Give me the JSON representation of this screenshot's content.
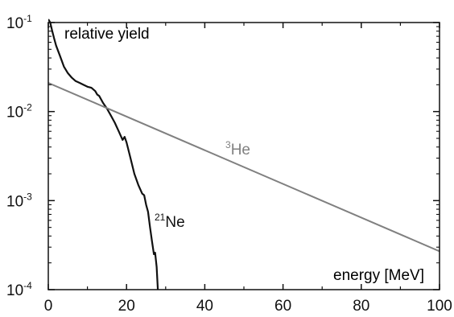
{
  "chart_data": {
    "type": "line",
    "title": "",
    "xlabel": "energy [MeV]",
    "ylabel": "relative yield",
    "xlim": [
      0,
      100
    ],
    "ylim": [
      0.0001,
      0.1
    ],
    "yscale": "log",
    "grid": false,
    "x_ticks": [
      {
        "value": 0,
        "label": "0"
      },
      {
        "value": 20,
        "label": "20"
      },
      {
        "value": 40,
        "label": "40"
      },
      {
        "value": 60,
        "label": "60"
      },
      {
        "value": 80,
        "label": "80"
      },
      {
        "value": 100,
        "label": "100"
      }
    ],
    "y_ticks": [
      {
        "value": 0.1,
        "base": "10",
        "exp": "-1"
      },
      {
        "value": 0.01,
        "base": "10",
        "exp": "-2"
      },
      {
        "value": 0.001,
        "base": "10",
        "exp": "-3"
      },
      {
        "value": 0.0001,
        "base": "10",
        "exp": "-4"
      }
    ],
    "series": [
      {
        "name": "21Ne",
        "label_sup": "21",
        "label_main": "Ne",
        "color": "#111111",
        "x": [
          0,
          0.5,
          1,
          1.5,
          2,
          3,
          4,
          5,
          6,
          7,
          8,
          9,
          10,
          11,
          12,
          12.5,
          13,
          14,
          15,
          16,
          17,
          18,
          19,
          19.5,
          20,
          21,
          22,
          23,
          24,
          24.5,
          25,
          25.5,
          26,
          26.5,
          27,
          27.3,
          27.7,
          28
        ],
        "y": [
          0.12,
          0.1,
          0.08,
          0.066,
          0.055,
          0.042,
          0.032,
          0.027,
          0.024,
          0.022,
          0.021,
          0.02,
          0.019,
          0.0185,
          0.017,
          0.0155,
          0.015,
          0.0125,
          0.0108,
          0.009,
          0.0075,
          0.006,
          0.0048,
          0.0052,
          0.0045,
          0.003,
          0.002,
          0.0015,
          0.0012,
          0.00115,
          0.0009,
          0.00075,
          0.0005,
          0.00035,
          0.00025,
          0.00026,
          0.00018,
          0.0001
        ]
      },
      {
        "name": "3He",
        "label_sup": "3",
        "label_main": "He",
        "color": "#808080",
        "x": [
          0,
          100
        ],
        "y": [
          0.021,
          0.00027
        ]
      }
    ]
  }
}
